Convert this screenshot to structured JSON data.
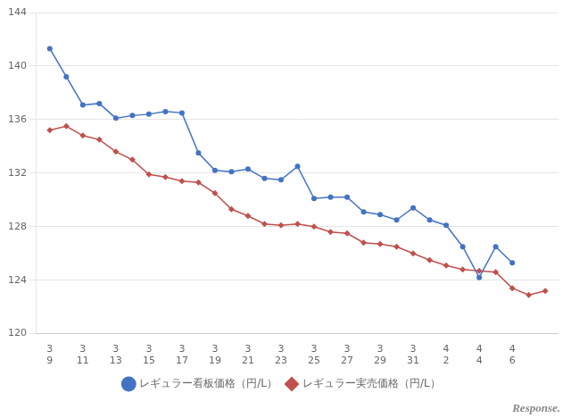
{
  "chart_data": {
    "type": "line",
    "series": [
      {
        "name": "レギュラー看板価格（円/L）",
        "color": "#4472C4",
        "marker": "circle",
        "x": [
          0,
          1,
          2,
          3,
          4,
          5,
          6,
          7,
          8,
          9,
          10,
          11,
          12,
          13,
          14,
          15,
          16,
          17,
          18,
          19,
          20,
          21,
          22,
          23,
          24,
          25,
          26,
          27,
          28
        ],
        "values": [
          141.3,
          139.2,
          137.1,
          137.2,
          136.1,
          136.3,
          136.4,
          136.6,
          136.5,
          133.5,
          132.2,
          132.1,
          132.3,
          131.6,
          131.5,
          132.5,
          130.1,
          130.2,
          130.2,
          129.1,
          128.9,
          128.5,
          129.4,
          128.5,
          128.1,
          126.5,
          124.2,
          126.5,
          125.3
        ]
      },
      {
        "name": "レギュラー実売価格（円/L）",
        "color": "#C0504D",
        "marker": "diamond",
        "x": [
          0,
          1,
          2,
          3,
          4,
          5,
          6,
          7,
          8,
          9,
          10,
          11,
          12,
          13,
          14,
          15,
          16,
          17,
          18,
          19,
          20,
          21,
          22,
          23,
          24,
          25,
          26,
          27,
          28,
          29,
          30
        ],
        "values": [
          135.2,
          135.5,
          134.8,
          134.5,
          133.6,
          133.0,
          131.9,
          131.7,
          131.4,
          131.3,
          130.5,
          129.3,
          128.8,
          128.2,
          128.1,
          128.2,
          128.0,
          127.6,
          127.5,
          126.8,
          126.7,
          126.5,
          126.0,
          125.5,
          125.1,
          124.8,
          124.7,
          124.6,
          123.4,
          122.9,
          123.2
        ]
      }
    ],
    "xlim": [
      -0.8,
      30.8
    ],
    "xticks": [
      {
        "value": 0,
        "label": "3\n9"
      },
      {
        "value": 2,
        "label": "3\n11"
      },
      {
        "value": 4,
        "label": "3\n13"
      },
      {
        "value": 6,
        "label": "3\n15"
      },
      {
        "value": 8,
        "label": "3\n17"
      },
      {
        "value": 10,
        "label": "3\n19"
      },
      {
        "value": 12,
        "label": "3\n21"
      },
      {
        "value": 14,
        "label": "3\n23"
      },
      {
        "value": 16,
        "label": "3\n25"
      },
      {
        "value": 18,
        "label": "3\n27"
      },
      {
        "value": 20,
        "label": "3\n29"
      },
      {
        "value": 22,
        "label": "3\n31"
      },
      {
        "value": 24,
        "label": "4\n2"
      },
      {
        "value": 26,
        "label": "4\n4"
      },
      {
        "value": 28,
        "label": "4\n6"
      }
    ],
    "ylim": [
      120,
      144
    ],
    "yticks": [
      120,
      124,
      128,
      132,
      136,
      140,
      144
    ],
    "grid": "y",
    "legend": "bottom",
    "annotations": [
      "Response."
    ]
  }
}
